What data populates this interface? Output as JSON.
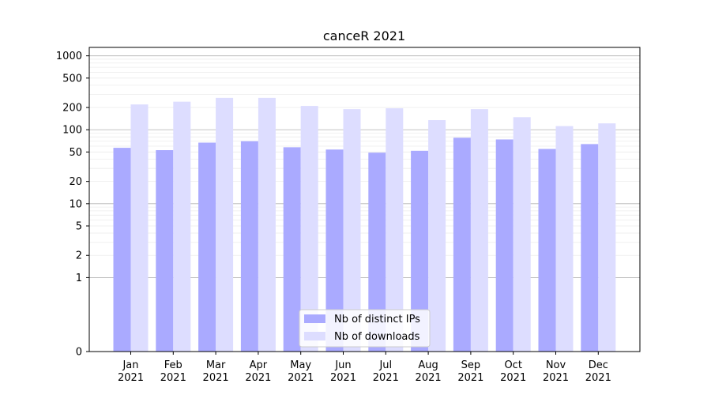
{
  "chart_data": {
    "type": "bar",
    "title": "canceR 2021",
    "xlabel": "",
    "ylabel": "",
    "yscale": "symlog",
    "ylim": [
      0,
      1300
    ],
    "y_ticks": [
      0,
      1,
      2,
      5,
      10,
      20,
      50,
      100,
      200,
      500,
      1000
    ],
    "y_tick_labels": [
      "0",
      "1",
      "2",
      "5",
      "10",
      "20",
      "50",
      "100",
      "200",
      "500",
      "1000"
    ],
    "categories": [
      "Jan",
      "Feb",
      "Mar",
      "Apr",
      "May",
      "Jun",
      "Jul",
      "Aug",
      "Sep",
      "Oct",
      "Nov",
      "Dec"
    ],
    "category_year": "2021",
    "series": [
      {
        "name": "Nb of distinct IPs",
        "color": "#aaaaff",
        "values": [
          57,
          53,
          67,
          70,
          58,
          54,
          49,
          52,
          78,
          74,
          55,
          64
        ]
      },
      {
        "name": "Nb of downloads",
        "color": "#ddddff",
        "values": [
          220,
          240,
          270,
          270,
          210,
          190,
          195,
          135,
          190,
          148,
          112,
          122
        ]
      }
    ],
    "grid": true,
    "legend_position": "bottom-center"
  }
}
